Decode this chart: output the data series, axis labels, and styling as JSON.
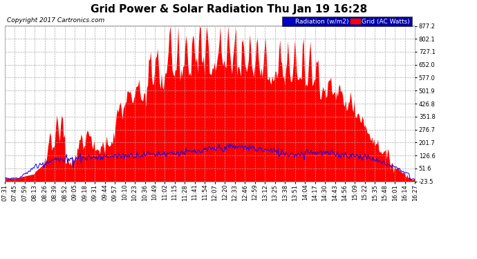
{
  "title": "Grid Power & Solar Radiation Thu Jan 19 16:28",
  "copyright": "Copyright 2017 Cartronics.com",
  "legend_radiation": "Radiation (w/m2)",
  "legend_grid": "Grid (AC Watts)",
  "yticks": [
    877.2,
    802.1,
    727.1,
    652.0,
    577.0,
    501.9,
    426.8,
    351.8,
    276.7,
    201.7,
    126.6,
    51.6,
    -23.5
  ],
  "ymin": -23.5,
  "ymax": 877.2,
  "background_color": "#ffffff",
  "grid_color": "#aaaaaa",
  "fill_color": "#ff0000",
  "line_color": "#0000ff",
  "title_fontsize": 11,
  "tick_fontsize": 6,
  "xtick_labels": [
    "07:31",
    "07:45",
    "07:59",
    "08:13",
    "08:26",
    "08:39",
    "08:52",
    "09:05",
    "09:18",
    "09:31",
    "09:44",
    "09:57",
    "10:10",
    "10:23",
    "10:36",
    "10:49",
    "11:02",
    "11:15",
    "11:28",
    "11:41",
    "11:54",
    "12:07",
    "12:20",
    "12:33",
    "12:46",
    "12:59",
    "13:12",
    "13:25",
    "13:38",
    "13:51",
    "14:04",
    "14:17",
    "14:30",
    "14:43",
    "14:56",
    "15:09",
    "15:22",
    "15:35",
    "15:48",
    "16:01",
    "16:14",
    "16:27"
  ]
}
